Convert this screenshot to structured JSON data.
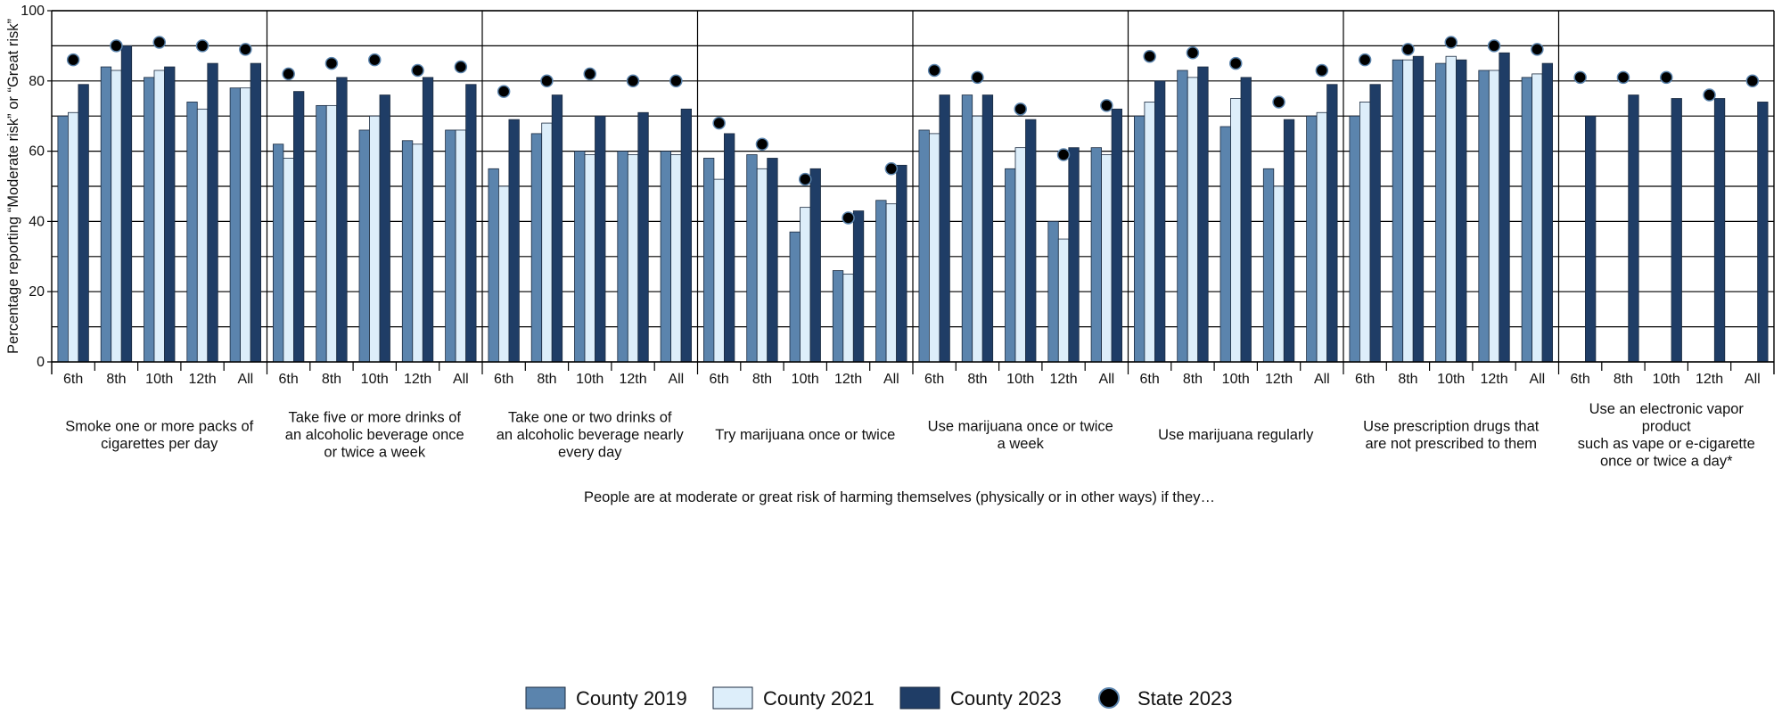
{
  "chart_data": {
    "type": "bar",
    "title": "",
    "ylabel": "Percentage reporting “Moderate risk” or “Great risk”",
    "xlabel": "People are at moderate or great risk of harming themselves (physically or in other ways) if they…",
    "ylim": [
      0,
      100
    ],
    "yticks": [
      0,
      20,
      40,
      60,
      80,
      100
    ],
    "grid": true,
    "legend_position": "bottom",
    "grades": [
      "6th",
      "8th",
      "10th",
      "12th",
      "All"
    ],
    "series": [
      {
        "name": "County 2019",
        "color": "#5b84ad",
        "kind": "bar"
      },
      {
        "name": "County 2021",
        "color": "#ddeefa",
        "kind": "bar"
      },
      {
        "name": "County 2023",
        "color": "#1f3d66",
        "kind": "bar"
      },
      {
        "name": "State 2023",
        "color": "#000000",
        "kind": "point"
      }
    ],
    "groups": [
      {
        "label_lines": [
          "Smoke one or more packs of",
          "cigarettes per day"
        ],
        "county2019": [
          70,
          84,
          81,
          74,
          78
        ],
        "county2021": [
          71,
          83,
          83,
          72,
          78
        ],
        "county2023": [
          79,
          90,
          84,
          85,
          85
        ],
        "state2023": [
          86,
          90,
          91,
          90,
          89
        ]
      },
      {
        "label_lines": [
          "Take five or more drinks of",
          "an alcoholic beverage once",
          "or twice a week"
        ],
        "county2019": [
          62,
          73,
          66,
          63,
          66
        ],
        "county2021": [
          58,
          73,
          70,
          62,
          66
        ],
        "county2023": [
          77,
          81,
          76,
          81,
          79
        ],
        "state2023": [
          82,
          85,
          86,
          83,
          84
        ]
      },
      {
        "label_lines": [
          "Take one or two drinks of",
          "an alcoholic beverage nearly",
          "every day"
        ],
        "county2019": [
          55,
          65,
          60,
          60,
          60
        ],
        "county2021": [
          50,
          68,
          59,
          59,
          59
        ],
        "county2023": [
          69,
          76,
          70,
          71,
          72
        ],
        "state2023": [
          77,
          80,
          82,
          80,
          80
        ]
      },
      {
        "label_lines": [
          "Try marijuana once or twice"
        ],
        "county2019": [
          58,
          59,
          37,
          26,
          46
        ],
        "county2021": [
          52,
          55,
          44,
          25,
          45
        ],
        "county2023": [
          65,
          58,
          55,
          43,
          56
        ],
        "state2023": [
          68,
          62,
          52,
          41,
          55
        ]
      },
      {
        "label_lines": [
          "Use marijuana once or twice",
          "a week"
        ],
        "county2019": [
          66,
          76,
          55,
          40,
          61
        ],
        "county2021": [
          65,
          70,
          61,
          35,
          59
        ],
        "county2023": [
          76,
          76,
          69,
          61,
          72
        ],
        "state2023": [
          83,
          81,
          72,
          59,
          73
        ]
      },
      {
        "label_lines": [
          "Use marijuana regularly"
        ],
        "county2019": [
          70,
          83,
          67,
          55,
          70
        ],
        "county2021": [
          74,
          81,
          75,
          50,
          71
        ],
        "county2023": [
          80,
          84,
          81,
          69,
          79
        ],
        "state2023": [
          87,
          88,
          85,
          74,
          83
        ]
      },
      {
        "label_lines": [
          "Use prescription drugs that",
          "are not prescribed to them"
        ],
        "county2019": [
          70,
          86,
          85,
          83,
          81
        ],
        "county2021": [
          74,
          86,
          87,
          83,
          82
        ],
        "county2023": [
          79,
          87,
          86,
          88,
          85
        ],
        "state2023": [
          86,
          89,
          91,
          90,
          89
        ]
      },
      {
        "label_lines": [
          "Use an electronic vapor",
          "product",
          "such as vape or e-cigarette",
          "once or twice a day*"
        ],
        "county2019": [
          null,
          null,
          null,
          null,
          null
        ],
        "county2021": [
          null,
          null,
          null,
          null,
          null
        ],
        "county2023": [
          70,
          76,
          75,
          75,
          74
        ],
        "state2023": [
          81,
          81,
          81,
          76,
          80
        ]
      }
    ]
  }
}
